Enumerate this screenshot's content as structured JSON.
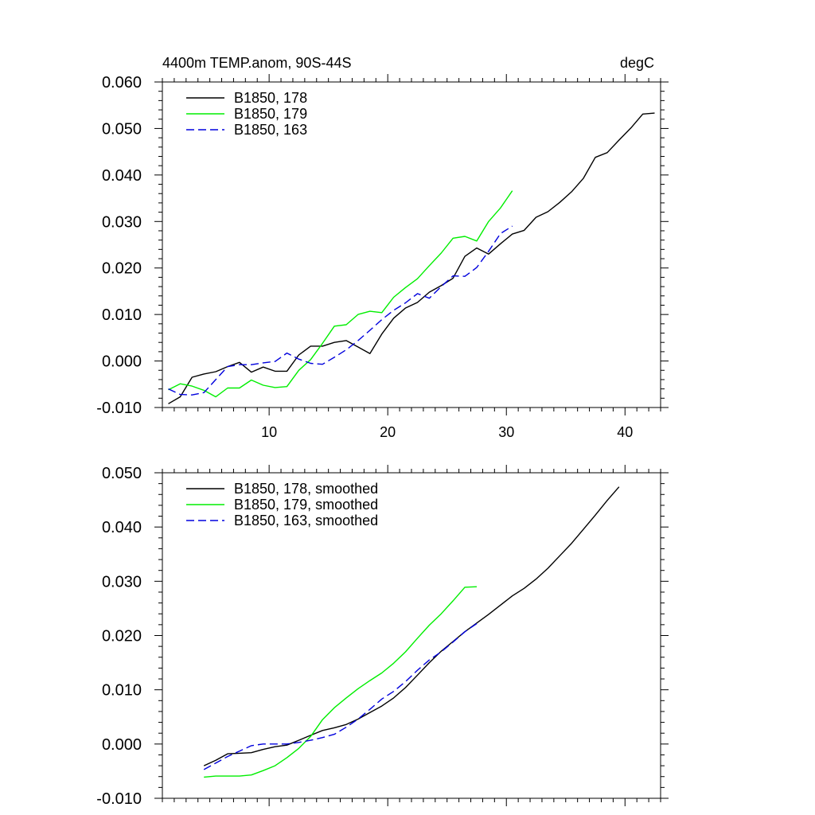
{
  "chart_data": [
    {
      "type": "line",
      "title": "4400m TEMP.anom, 90S-44S",
      "units": "degC",
      "xlim": [
        1,
        43
      ],
      "ylim": [
        -0.01,
        0.06
      ],
      "x_ticks": [
        10,
        20,
        30,
        40
      ],
      "x_tick_labels": [
        "10",
        "20",
        "30",
        "40"
      ],
      "y_ticks": [
        -0.01,
        0.0,
        0.01,
        0.02,
        0.03,
        0.04,
        0.05,
        0.06
      ],
      "y_tick_labels": [
        "-0.010",
        "0.000",
        "0.010",
        "0.020",
        "0.030",
        "0.040",
        "0.050",
        "0.060"
      ],
      "legend_position": "top-left",
      "series": [
        {
          "name": "B1850, 178",
          "color": "#000000",
          "dash": "solid",
          "x": [
            1.5,
            2.5,
            3.5,
            4.5,
            5.5,
            6.5,
            7.5,
            8.5,
            9.5,
            10.5,
            11.5,
            12.5,
            13.5,
            14.5,
            15.5,
            16.5,
            17.5,
            18.5,
            19.5,
            20.5,
            21.5,
            22.5,
            23.5,
            24.5,
            25.5,
            26.5,
            27.5,
            28.5,
            29.5,
            30.5,
            31.5,
            32.5,
            33.5,
            34.5,
            35.5,
            36.5,
            37.5,
            38.5,
            39.5,
            40.5,
            41.5,
            42.5
          ],
          "values": [
            -0.0092,
            -0.0077,
            -0.0035,
            -0.0028,
            -0.0023,
            -0.0012,
            -0.0003,
            -0.0024,
            -0.0013,
            -0.0022,
            -0.0022,
            0.0013,
            0.0032,
            0.0032,
            0.004,
            0.0044,
            0.003,
            0.0016,
            0.0058,
            0.0092,
            0.0114,
            0.0126,
            0.0148,
            0.0162,
            0.0178,
            0.0225,
            0.0243,
            0.023,
            0.0252,
            0.0273,
            0.0281,
            0.0309,
            0.0321,
            0.0341,
            0.0364,
            0.0393,
            0.0438,
            0.0448,
            0.0475,
            0.0501,
            0.0531,
            0.0533
          ]
        },
        {
          "name": "B1850, 179",
          "color": "#00ee00",
          "dash": "solid",
          "x": [
            1.5,
            2.5,
            3.5,
            4.5,
            5.5,
            6.5,
            7.5,
            8.5,
            9.5,
            10.5,
            11.5,
            12.5,
            13.5,
            14.5,
            15.5,
            16.5,
            17.5,
            18.5,
            19.5,
            20.5,
            21.5,
            22.5,
            23.5,
            24.5,
            25.5,
            26.5,
            27.5,
            28.5,
            29.5,
            30.5
          ],
          "values": [
            -0.0062,
            -0.0049,
            -0.0054,
            -0.0063,
            -0.0077,
            -0.0058,
            -0.0058,
            -0.0041,
            -0.0052,
            -0.0057,
            -0.0055,
            -0.002,
            0.0003,
            0.0038,
            0.0075,
            0.0078,
            0.01,
            0.0107,
            0.0104,
            0.0137,
            0.0158,
            0.0177,
            0.0205,
            0.0232,
            0.0264,
            0.0268,
            0.0258,
            0.03,
            0.0329,
            0.0366
          ]
        },
        {
          "name": "B1850, 163",
          "color": "#0000dd",
          "dash": "dashed",
          "x": [
            1.5,
            2.5,
            3.5,
            4.5,
            5.5,
            6.5,
            7.5,
            8.5,
            9.5,
            10.5,
            11.5,
            12.5,
            13.5,
            14.5,
            15.5,
            16.5,
            17.5,
            18.5,
            19.5,
            20.5,
            21.5,
            22.5,
            23.5,
            24.5,
            25.5,
            26.5,
            27.5,
            28.5,
            29.5,
            30.5
          ],
          "values": [
            -0.006,
            -0.0072,
            -0.0073,
            -0.0068,
            -0.004,
            -0.0012,
            -0.0008,
            -0.0008,
            -0.0004,
            -0.0001,
            0.0017,
            0.0004,
            -0.0005,
            -0.0007,
            0.0008,
            0.0024,
            0.0044,
            0.0066,
            0.0089,
            0.0109,
            0.0125,
            0.0145,
            0.0135,
            0.016,
            0.0183,
            0.0182,
            0.0201,
            0.0236,
            0.0274,
            0.029
          ]
        }
      ]
    },
    {
      "type": "line",
      "xlim": [
        1,
        43
      ],
      "ylim": [
        -0.01,
        0.05
      ],
      "x_ticks": [
        10,
        20,
        30,
        40
      ],
      "x_tick_labels": [],
      "y_ticks": [
        -0.01,
        0.0,
        0.01,
        0.02,
        0.03,
        0.04,
        0.05
      ],
      "y_tick_labels": [
        "-0.010",
        "0.000",
        "0.010",
        "0.020",
        "0.030",
        "0.040",
        "0.050"
      ],
      "legend_position": "top-left",
      "series": [
        {
          "name": "B1850, 178, smoothed",
          "color": "#000000",
          "dash": "solid",
          "x": [
            4.5,
            5.5,
            6.5,
            7.5,
            8.5,
            9.5,
            10.5,
            11.5,
            12.5,
            13.5,
            14.5,
            15.5,
            16.5,
            17.5,
            18.5,
            19.5,
            20.5,
            21.5,
            22.5,
            23.5,
            24.5,
            25.5,
            26.5,
            27.5,
            28.5,
            29.5,
            30.5,
            31.5,
            32.5,
            33.5,
            34.5,
            35.5,
            36.5,
            37.5,
            38.5,
            39.5
          ],
          "values": [
            -0.004,
            -0.003,
            -0.0018,
            -0.0017,
            -0.0016,
            -0.001,
            -0.0005,
            -0.0002,
            0.0007,
            0.0016,
            0.0025,
            0.003,
            0.0036,
            0.0046,
            0.0058,
            0.007,
            0.0085,
            0.0104,
            0.0127,
            0.015,
            0.0171,
            0.0189,
            0.0207,
            0.0223,
            0.0239,
            0.0256,
            0.0273,
            0.0287,
            0.0304,
            0.0324,
            0.0347,
            0.037,
            0.0396,
            0.0422,
            0.0449,
            0.0474
          ]
        },
        {
          "name": "B1850, 179, smoothed",
          "color": "#00ee00",
          "dash": "solid",
          "x": [
            4.5,
            5.5,
            6.5,
            7.5,
            8.5,
            9.5,
            10.5,
            11.5,
            12.5,
            13.5,
            14.5,
            15.5,
            16.5,
            17.5,
            18.5,
            19.5,
            20.5,
            21.5,
            22.5,
            23.5,
            24.5,
            25.5,
            26.5,
            27.5
          ],
          "values": [
            -0.0061,
            -0.0059,
            -0.0059,
            -0.0059,
            -0.0057,
            -0.0049,
            -0.004,
            -0.0025,
            -0.0008,
            0.0014,
            0.0045,
            0.0067,
            0.0085,
            0.0102,
            0.0117,
            0.0131,
            0.0149,
            0.017,
            0.0195,
            0.0219,
            0.024,
            0.0264,
            0.0289,
            0.029
          ]
        },
        {
          "name": "B1850, 163, smoothed",
          "color": "#0000dd",
          "dash": "dashed",
          "x": [
            4.5,
            5.5,
            6.5,
            7.5,
            8.5,
            9.5,
            10.5,
            11.5,
            12.5,
            13.5,
            14.5,
            15.5,
            16.5,
            17.5,
            18.5,
            19.5,
            20.5,
            21.5,
            22.5,
            23.5,
            24.5,
            25.5,
            26.5,
            27.5
          ],
          "values": [
            -0.0047,
            -0.0035,
            -0.0023,
            -0.0013,
            -0.0003,
            0.0,
            0.0,
            0.0,
            0.0003,
            0.0007,
            0.0012,
            0.0018,
            0.0031,
            0.0046,
            0.0064,
            0.0083,
            0.0097,
            0.0115,
            0.0136,
            0.0155,
            0.017,
            0.0188,
            0.0207,
            0.0222
          ]
        }
      ]
    }
  ]
}
